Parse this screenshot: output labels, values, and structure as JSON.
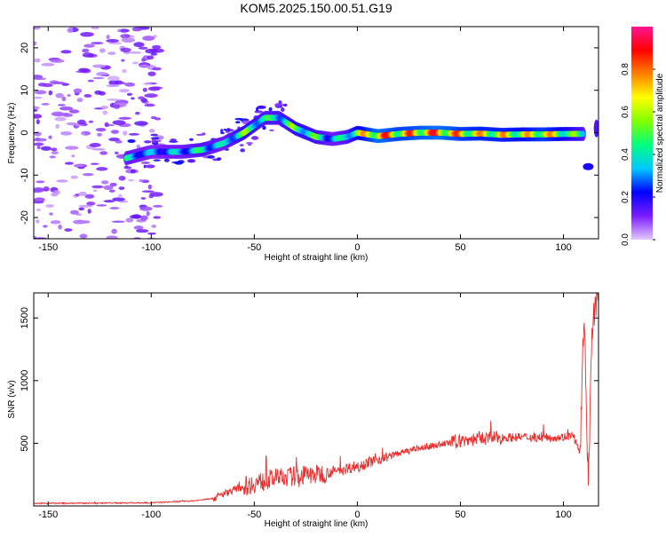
{
  "chart_data": [
    {
      "type": "heatmap",
      "title": "KOM5.2025.150.00.51.G19",
      "xlabel": "Height of straight line (km)",
      "ylabel": "Frequency (Hz)",
      "xlim": [
        -157,
        117
      ],
      "ylim": [
        -25,
        25
      ],
      "xticks": [
        -150,
        -100,
        -50,
        0,
        50,
        100
      ],
      "yticks": [
        -20,
        -10,
        0,
        10,
        20
      ],
      "colorbar": {
        "label": "Normalized spectral amplitude",
        "range": [
          0,
          1
        ],
        "ticks": [
          0.0,
          0.2,
          0.4,
          0.6,
          0.8
        ],
        "colormap": [
          "#e4c8ff",
          "#7b1cff",
          "#0000ff",
          "#00c8ff",
          "#00ff80",
          "#80ff00",
          "#ffff00",
          "#ff8000",
          "#ff0000",
          "#ff1493"
        ]
      },
      "ridge": {
        "x": [
          -112,
          -100,
          -85,
          -75,
          -65,
          -55,
          -45,
          -38,
          -30,
          -20,
          -12,
          -5,
          0,
          10,
          20,
          30,
          40,
          50,
          60,
          70,
          80,
          90,
          100,
          110
        ],
        "y": [
          -6,
          -4.5,
          -4.5,
          -4,
          -2.5,
          0,
          3.5,
          3.5,
          1,
          -1,
          -1.5,
          -1,
          0,
          -0.8,
          -0.3,
          0,
          0,
          -0.3,
          -0.2,
          -0.5,
          -0.4,
          -0.4,
          -0.3,
          -0.3
        ],
        "amplitude": [
          0.45,
          0.35,
          0.4,
          0.5,
          0.4,
          0.6,
          0.5,
          0.5,
          0.6,
          0.55,
          0.4,
          0.5,
          0.7,
          0.95,
          0.85,
          0.9,
          0.95,
          0.85,
          0.8,
          0.8,
          0.75,
          0.85,
          0.7,
          0.5
        ]
      },
      "grid": false
    },
    {
      "type": "line",
      "xlabel": "Height of straight line (km)",
      "ylabel": "SNR (v/v)",
      "xlim": [
        -157,
        117
      ],
      "ylim": [
        0,
        1700
      ],
      "xticks": [
        -150,
        -100,
        -50,
        0,
        50,
        100
      ],
      "yticks": [
        500,
        1000,
        1500
      ],
      "color": "#e8302f",
      "trend": {
        "x": [
          -157,
          -100,
          -80,
          -70,
          -60,
          -50,
          -40,
          -30,
          -20,
          -10,
          0,
          10,
          20,
          30,
          40,
          50,
          60,
          70,
          80,
          90,
          100,
          105,
          108,
          110,
          112,
          114,
          116
        ],
        "y": [
          20,
          25,
          40,
          60,
          130,
          180,
          220,
          240,
          250,
          280,
          320,
          370,
          420,
          460,
          490,
          520,
          540,
          545,
          550,
          545,
          550,
          560,
          400,
          1550,
          200,
          1450,
          1650
        ]
      },
      "grid": false
    }
  ]
}
